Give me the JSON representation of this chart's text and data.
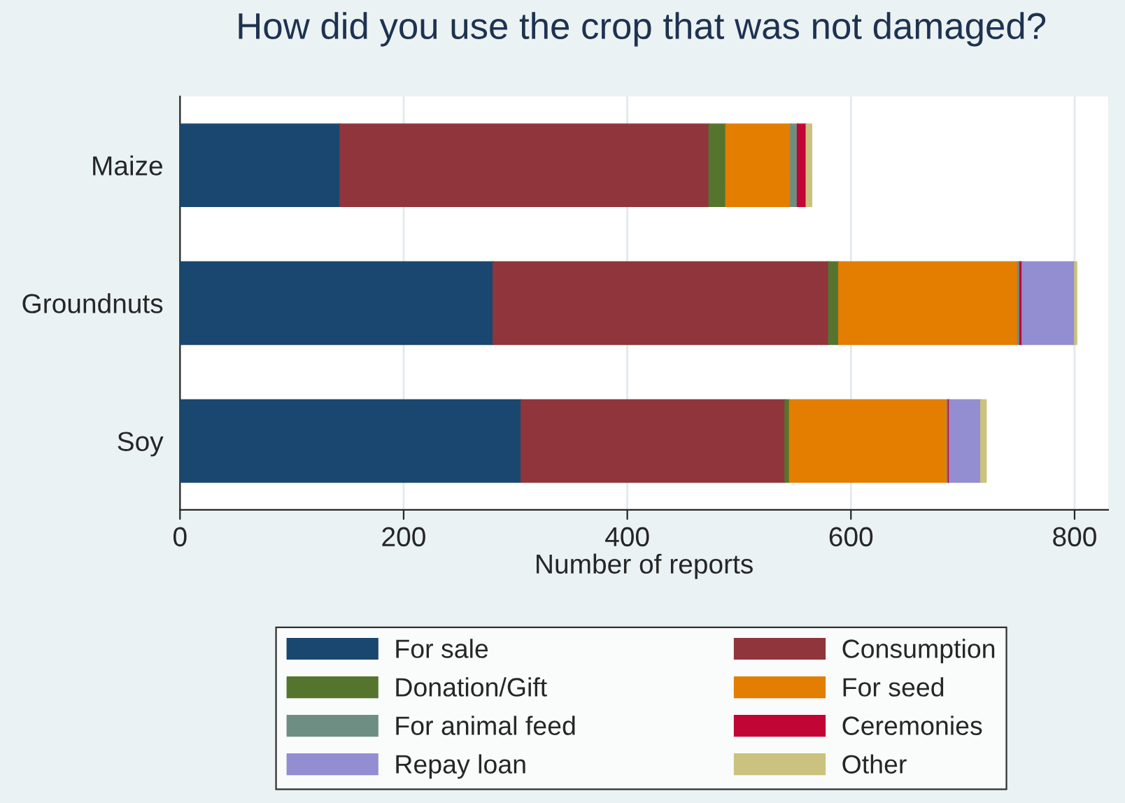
{
  "chart_data": {
    "type": "bar",
    "orientation": "horizontal",
    "stacked": true,
    "title": "How did you use the crop that was not damaged?",
    "xlabel": "Number of reports",
    "categories": [
      "Maize",
      "Groundnuts",
      "Soy"
    ],
    "series": [
      {
        "name": "For sale",
        "color": "#1a476f",
        "values": [
          143,
          280,
          305
        ]
      },
      {
        "name": "Consumption",
        "color": "#90353b",
        "values": [
          330,
          300,
          236
        ]
      },
      {
        "name": "Donation/Gift",
        "color": "#55752f",
        "values": [
          15,
          9,
          4
        ]
      },
      {
        "name": "For seed",
        "color": "#e37e00",
        "values": [
          58,
          160,
          141
        ]
      },
      {
        "name": "For animal feed",
        "color": "#6e8e84",
        "values": [
          6,
          2,
          1
        ]
      },
      {
        "name": "Ceremonies",
        "color": "#c10534",
        "values": [
          8,
          2,
          1
        ]
      },
      {
        "name": "Repay loan",
        "color": "#938dd2",
        "values": [
          0,
          47,
          28
        ]
      },
      {
        "name": "Other",
        "color": "#cac27e",
        "values": [
          5,
          2,
          5
        ]
      }
    ],
    "xlim": [
      0,
      830
    ],
    "xticks": [
      0,
      200,
      400,
      600,
      800
    ],
    "grid": "x",
    "legend": "bottom"
  }
}
